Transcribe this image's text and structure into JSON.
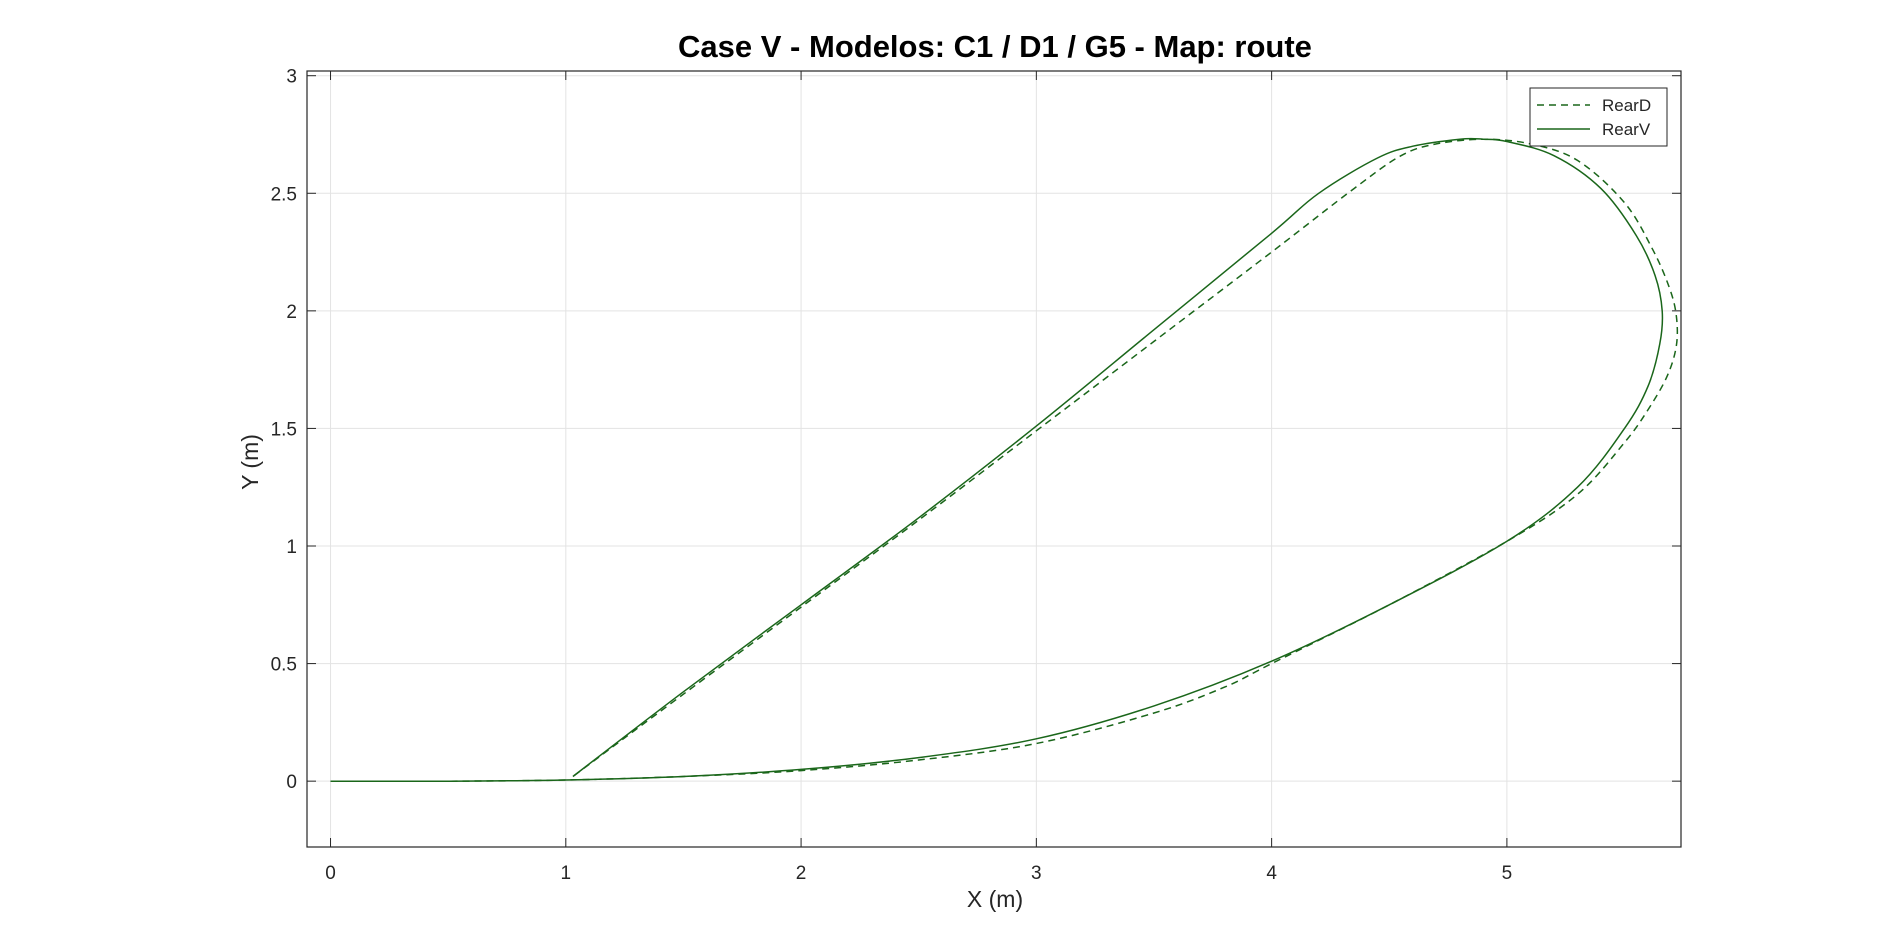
{
  "chart_data": {
    "type": "line",
    "title": "Case V - Modelos: C1 / D1 / G5 - Map: route",
    "xlabel": "X (m)",
    "ylabel": "Y (m)",
    "xlim": [
      -0.1,
      5.74
    ],
    "ylim": [
      -0.28,
      3.02
    ],
    "xticks": [
      0,
      1,
      2,
      3,
      4,
      5
    ],
    "yticks": [
      0,
      0.5,
      1,
      1.5,
      2,
      2.5,
      3
    ],
    "xtick_labels": [
      "0",
      "1",
      "2",
      "3",
      "4",
      "5"
    ],
    "ytick_labels": [
      "0",
      "0.5",
      "1",
      "1.5",
      "2",
      "2.5",
      "3"
    ],
    "grid": true,
    "legend_position": "top-right",
    "line_color": "#1a661a",
    "series": [
      {
        "name": "RearD",
        "style": "dashed",
        "points": [
          [
            0,
            0
          ],
          [
            0.5,
            0.0
          ],
          [
            1.0,
            0.005
          ],
          [
            1.5,
            0.02
          ],
          [
            2.0,
            0.045
          ],
          [
            2.5,
            0.09
          ],
          [
            3.0,
            0.16
          ],
          [
            3.5,
            0.29
          ],
          [
            3.8,
            0.4
          ],
          [
            4.0,
            0.5
          ],
          [
            4.5,
            0.75
          ],
          [
            5.0,
            1.02
          ],
          [
            5.3,
            1.22
          ],
          [
            5.5,
            1.44
          ],
          [
            5.6,
            1.58
          ],
          [
            5.68,
            1.72
          ],
          [
            5.72,
            1.85
          ],
          [
            5.72,
            1.98
          ],
          [
            5.69,
            2.1
          ],
          [
            5.62,
            2.26
          ],
          [
            5.5,
            2.46
          ],
          [
            5.3,
            2.64
          ],
          [
            5.1,
            2.71
          ],
          [
            4.9,
            2.73
          ],
          [
            4.7,
            2.71
          ],
          [
            4.55,
            2.66
          ],
          [
            4.35,
            2.52
          ],
          [
            4.0,
            2.25
          ],
          [
            3.5,
            1.87
          ],
          [
            3.0,
            1.49
          ],
          [
            2.5,
            1.11
          ],
          [
            2.0,
            0.74
          ],
          [
            1.5,
            0.37
          ],
          [
            1.03,
            0.02
          ]
        ]
      },
      {
        "name": "RearV",
        "style": "solid",
        "points": [
          [
            0,
            0
          ],
          [
            0.5,
            0.0
          ],
          [
            1.0,
            0.005
          ],
          [
            1.5,
            0.02
          ],
          [
            2.0,
            0.05
          ],
          [
            2.5,
            0.1
          ],
          [
            3.0,
            0.18
          ],
          [
            3.5,
            0.32
          ],
          [
            4.0,
            0.51
          ],
          [
            4.5,
            0.75
          ],
          [
            5.0,
            1.02
          ],
          [
            5.3,
            1.25
          ],
          [
            5.5,
            1.5
          ],
          [
            5.6,
            1.68
          ],
          [
            5.65,
            1.86
          ],
          [
            5.66,
            2.0
          ],
          [
            5.63,
            2.15
          ],
          [
            5.55,
            2.32
          ],
          [
            5.4,
            2.52
          ],
          [
            5.2,
            2.66
          ],
          [
            5.0,
            2.72
          ],
          [
            4.9,
            2.73
          ],
          [
            4.8,
            2.73
          ],
          [
            4.6,
            2.7
          ],
          [
            4.45,
            2.65
          ],
          [
            4.2,
            2.5
          ],
          [
            4.0,
            2.33
          ],
          [
            3.5,
            1.92
          ],
          [
            3.0,
            1.51
          ],
          [
            2.5,
            1.12
          ],
          [
            2.0,
            0.75
          ],
          [
            1.5,
            0.38
          ],
          [
            1.03,
            0.02
          ]
        ]
      }
    ]
  }
}
